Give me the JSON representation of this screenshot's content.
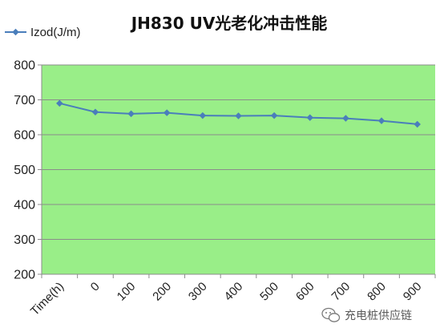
{
  "chart_data": {
    "type": "line",
    "title": "JH830 UV光老化冲击性能",
    "xlabel": "",
    "ylabel": "",
    "categories": [
      "Time(h)",
      "0",
      "100",
      "200",
      "300",
      "400",
      "500",
      "600",
      "700",
      "800",
      "900"
    ],
    "series": [
      {
        "name": "Izod(J/m)",
        "values": [
          690,
          665,
          660,
          663,
          655,
          654,
          655,
          649,
          647,
          640,
          630
        ]
      }
    ],
    "ylim": [
      200,
      800
    ],
    "yticks": [
      "200",
      "300",
      "400",
      "500",
      "600",
      "700",
      "800"
    ],
    "grid": true,
    "legend_position": "top-left",
    "colors": {
      "plot_background": "#99ee88",
      "line": "#4a7ebb",
      "gridline": "#8c8c8c"
    }
  },
  "watermark": {
    "text": "充电桩供应链",
    "icon": "wechat-icon"
  }
}
